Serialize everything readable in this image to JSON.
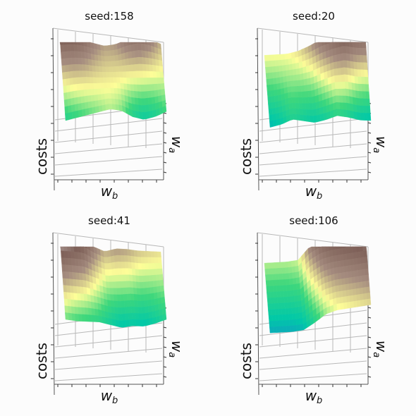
{
  "figure": {
    "colormap": "terrain",
    "colormap_stops": [
      "#333399",
      "#1f7bd6",
      "#00c8a8",
      "#3ed77c",
      "#fefe98",
      "#a58c7f",
      "#7d5f57",
      "#ffffff"
    ]
  },
  "chart_data": [
    {
      "type": "surface3d",
      "title": "seed:158",
      "xlabel": "w_b",
      "ylabel": "w_a",
      "zlabel": "costs",
      "grid": true,
      "surface_profile": {
        "back_ridge": [
          0.82,
          0.82,
          0.78,
          0.7,
          0.64,
          0.66,
          0.74,
          0.78,
          0.72,
          0.62
        ],
        "front_edge": [
          0.3,
          0.34,
          0.38,
          0.42,
          0.46,
          0.42,
          0.3,
          0.24,
          0.28,
          0.36
        ]
      }
    },
    {
      "type": "surface3d",
      "title": "seed:20",
      "xlabel": "w_b",
      "ylabel": "w_a",
      "zlabel": "costs",
      "grid": true,
      "surface_profile": {
        "back_ridge": [
          0.52,
          0.52,
          0.52,
          0.56,
          0.64,
          0.74,
          0.8,
          0.86,
          0.82,
          0.8
        ],
        "front_edge": [
          0.18,
          0.22,
          0.3,
          0.26,
          0.22,
          0.26,
          0.32,
          0.28,
          0.22,
          0.2
        ]
      }
    },
    {
      "type": "surface3d",
      "title": "seed:41",
      "xlabel": "w_b",
      "ylabel": "w_a",
      "zlabel": "costs",
      "grid": true,
      "surface_profile": {
        "back_ridge": [
          0.92,
          0.9,
          0.86,
          0.72,
          0.62,
          0.66,
          0.64,
          0.6,
          0.58,
          0.56
        ],
        "front_edge": [
          0.4,
          0.36,
          0.34,
          0.32,
          0.26,
          0.2,
          0.22,
          0.2,
          0.24,
          0.3
        ]
      }
    },
    {
      "type": "surface3d",
      "title": "seed:106",
      "xlabel": "w_b",
      "ylabel": "w_a",
      "zlabel": "costs",
      "grid": true,
      "surface_profile": {
        "back_ridge": [
          0.46,
          0.46,
          0.46,
          0.48,
          0.7,
          0.8,
          0.84,
          0.86,
          0.88,
          0.9
        ],
        "front_edge": [
          0.16,
          0.16,
          0.16,
          0.18,
          0.3,
          0.44,
          0.5,
          0.52,
          0.54,
          0.56
        ]
      }
    }
  ]
}
